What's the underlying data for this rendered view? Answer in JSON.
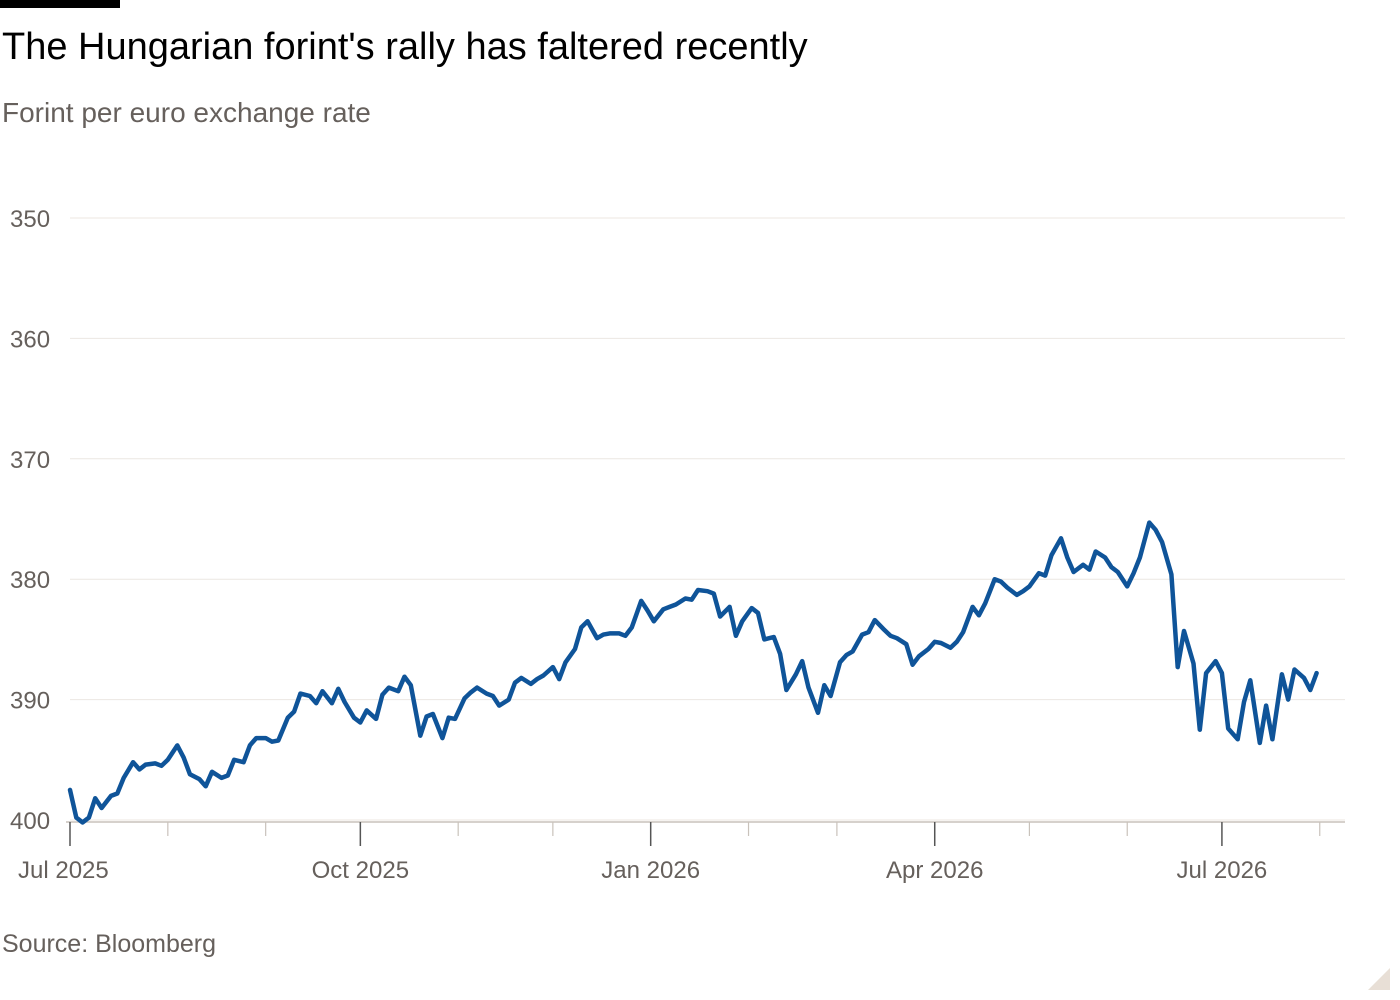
{
  "header": {
    "title": "The Hungarian forint's rally has faltered recently",
    "subtitle": "Forint per euro exchange rate"
  },
  "footer": {
    "source": "Source: Bloomberg"
  },
  "colors": {
    "line": "#0f5499",
    "grid": "#ece7e2",
    "axis": "#c9c2bb",
    "text": "#66605c"
  },
  "chart_data": {
    "type": "line",
    "title": "The Hungarian forint's rally has faltered recently",
    "subtitle": "Forint per euro exchange rate",
    "xlabel": "",
    "ylabel": "",
    "y_inverted": true,
    "ylim": [
      400,
      350
    ],
    "yticks": [
      350,
      360,
      370,
      380,
      390,
      400
    ],
    "xticks": [
      {
        "date": "2025-07-01",
        "label": "Jul 2025"
      },
      {
        "date": "2025-10-01",
        "label": "Oct 2025"
      },
      {
        "date": "2026-01-01",
        "label": "Jan 2026"
      },
      {
        "date": "2026-04-01",
        "label": "Apr 2026"
      },
      {
        "date": "2026-07-01",
        "label": "Jul 2026"
      }
    ],
    "minor_xticks": [
      "2025-08-01",
      "2025-09-01",
      "2025-11-01",
      "2025-12-01",
      "2026-02-01",
      "2026-03-01",
      "2026-05-01",
      "2026-06-01",
      "2026-08-01"
    ],
    "xlim": [
      "2025-07-01",
      "2026-08-09"
    ],
    "grid": true,
    "series": [
      {
        "points": [
          [
            "2025-07-01",
            397.5
          ],
          [
            "2025-07-03",
            399.8
          ],
          [
            "2025-07-05",
            400.2
          ],
          [
            "2025-07-07",
            399.8
          ],
          [
            "2025-07-09",
            398.2
          ],
          [
            "2025-07-11",
            399.0
          ],
          [
            "2025-07-14",
            398.0
          ],
          [
            "2025-07-16",
            397.8
          ],
          [
            "2025-07-18",
            396.5
          ],
          [
            "2025-07-21",
            395.2
          ],
          [
            "2025-07-23",
            395.8
          ],
          [
            "2025-07-25",
            395.4
          ],
          [
            "2025-07-28",
            395.3
          ],
          [
            "2025-07-30",
            395.5
          ],
          [
            "2025-08-01",
            395.0
          ],
          [
            "2025-08-04",
            393.8
          ],
          [
            "2025-08-06",
            394.8
          ],
          [
            "2025-08-08",
            396.2
          ],
          [
            "2025-08-11",
            396.6
          ],
          [
            "2025-08-13",
            397.2
          ],
          [
            "2025-08-15",
            396.0
          ],
          [
            "2025-08-18",
            396.5
          ],
          [
            "2025-08-20",
            396.3
          ],
          [
            "2025-08-22",
            395.0
          ],
          [
            "2025-08-25",
            395.2
          ],
          [
            "2025-08-27",
            393.8
          ],
          [
            "2025-08-29",
            393.2
          ],
          [
            "2025-09-01",
            393.2
          ],
          [
            "2025-09-03",
            393.5
          ],
          [
            "2025-09-05",
            393.4
          ],
          [
            "2025-09-08",
            391.5
          ],
          [
            "2025-09-10",
            391.0
          ],
          [
            "2025-09-12",
            389.5
          ],
          [
            "2025-09-15",
            389.7
          ],
          [
            "2025-09-17",
            390.3
          ],
          [
            "2025-09-19",
            389.3
          ],
          [
            "2025-09-22",
            390.3
          ],
          [
            "2025-09-24",
            389.1
          ],
          [
            "2025-09-26",
            390.2
          ],
          [
            "2025-09-29",
            391.5
          ],
          [
            "2025-10-01",
            391.9
          ],
          [
            "2025-10-03",
            390.9
          ],
          [
            "2025-10-06",
            391.6
          ],
          [
            "2025-10-08",
            389.6
          ],
          [
            "2025-10-10",
            389.0
          ],
          [
            "2025-10-13",
            389.3
          ],
          [
            "2025-10-15",
            388.1
          ],
          [
            "2025-10-17",
            388.8
          ],
          [
            "2025-10-20",
            393.0
          ],
          [
            "2025-10-22",
            391.4
          ],
          [
            "2025-10-24",
            391.2
          ],
          [
            "2025-10-27",
            393.2
          ],
          [
            "2025-10-29",
            391.5
          ],
          [
            "2025-10-31",
            391.6
          ],
          [
            "2025-11-03",
            389.9
          ],
          [
            "2025-11-05",
            389.4
          ],
          [
            "2025-11-07",
            389.0
          ],
          [
            "2025-11-10",
            389.5
          ],
          [
            "2025-11-12",
            389.7
          ],
          [
            "2025-11-14",
            390.5
          ],
          [
            "2025-11-17",
            390.0
          ],
          [
            "2025-11-19",
            388.6
          ],
          [
            "2025-11-21",
            388.2
          ],
          [
            "2025-11-24",
            388.7
          ],
          [
            "2025-11-26",
            388.3
          ],
          [
            "2025-11-28",
            388.0
          ],
          [
            "2025-12-01",
            387.3
          ],
          [
            "2025-12-03",
            388.3
          ],
          [
            "2025-12-05",
            386.9
          ],
          [
            "2025-12-08",
            385.8
          ],
          [
            "2025-12-10",
            384.0
          ],
          [
            "2025-12-12",
            383.5
          ],
          [
            "2025-12-15",
            384.9
          ],
          [
            "2025-12-17",
            384.6
          ],
          [
            "2025-12-19",
            384.5
          ],
          [
            "2025-12-22",
            384.5
          ],
          [
            "2025-12-24",
            384.7
          ],
          [
            "2025-12-26",
            384.0
          ],
          [
            "2025-12-29",
            381.8
          ],
          [
            "2025-12-31",
            382.6
          ],
          [
            "2026-01-02",
            383.5
          ],
          [
            "2026-01-05",
            382.5
          ],
          [
            "2026-01-07",
            382.3
          ],
          [
            "2026-01-09",
            382.1
          ],
          [
            "2026-01-12",
            381.6
          ],
          [
            "2026-01-14",
            381.7
          ],
          [
            "2026-01-16",
            380.9
          ],
          [
            "2026-01-19",
            381.0
          ],
          [
            "2026-01-21",
            381.2
          ],
          [
            "2026-01-23",
            383.1
          ],
          [
            "2026-01-26",
            382.3
          ],
          [
            "2026-01-28",
            384.7
          ],
          [
            "2026-01-30",
            383.5
          ],
          [
            "2026-02-02",
            382.4
          ],
          [
            "2026-02-04",
            382.8
          ],
          [
            "2026-02-06",
            385.0
          ],
          [
            "2026-02-09",
            384.8
          ],
          [
            "2026-02-11",
            386.2
          ],
          [
            "2026-02-13",
            389.2
          ],
          [
            "2026-02-16",
            387.9
          ],
          [
            "2026-02-18",
            386.8
          ],
          [
            "2026-02-20",
            389.0
          ],
          [
            "2026-02-23",
            391.1
          ],
          [
            "2026-02-25",
            388.8
          ],
          [
            "2026-02-27",
            389.7
          ],
          [
            "2026-03-02",
            386.9
          ],
          [
            "2026-03-04",
            386.3
          ],
          [
            "2026-03-06",
            386.0
          ],
          [
            "2026-03-09",
            384.6
          ],
          [
            "2026-03-11",
            384.4
          ],
          [
            "2026-03-13",
            383.4
          ],
          [
            "2026-03-16",
            384.2
          ],
          [
            "2026-03-18",
            384.7
          ],
          [
            "2026-03-20",
            384.9
          ],
          [
            "2026-03-23",
            385.4
          ],
          [
            "2026-03-25",
            387.1
          ],
          [
            "2026-03-27",
            386.4
          ],
          [
            "2026-03-30",
            385.8
          ],
          [
            "2026-04-01",
            385.2
          ],
          [
            "2026-04-03",
            385.3
          ],
          [
            "2026-04-06",
            385.7
          ],
          [
            "2026-04-08",
            385.2
          ],
          [
            "2026-04-10",
            384.4
          ],
          [
            "2026-04-13",
            382.3
          ],
          [
            "2026-04-15",
            383.0
          ],
          [
            "2026-04-17",
            382.0
          ],
          [
            "2026-04-20",
            380.0
          ],
          [
            "2026-04-22",
            380.2
          ],
          [
            "2026-04-24",
            380.7
          ],
          [
            "2026-04-27",
            381.3
          ],
          [
            "2026-04-29",
            381.0
          ],
          [
            "2026-05-01",
            380.6
          ],
          [
            "2026-05-04",
            379.5
          ],
          [
            "2026-05-06",
            379.7
          ],
          [
            "2026-05-08",
            378.0
          ],
          [
            "2026-05-11",
            376.6
          ],
          [
            "2026-05-13",
            378.2
          ],
          [
            "2026-05-15",
            379.4
          ],
          [
            "2026-05-18",
            378.8
          ],
          [
            "2026-05-20",
            379.2
          ],
          [
            "2026-05-22",
            377.7
          ],
          [
            "2026-05-25",
            378.2
          ],
          [
            "2026-05-27",
            379.0
          ],
          [
            "2026-05-29",
            379.4
          ],
          [
            "2026-06-01",
            380.6
          ],
          [
            "2026-06-03",
            379.5
          ],
          [
            "2026-06-05",
            378.2
          ],
          [
            "2026-06-08",
            375.3
          ],
          [
            "2026-06-10",
            375.9
          ],
          [
            "2026-06-12",
            376.9
          ],
          [
            "2026-06-15",
            379.6
          ],
          [
            "2026-06-17",
            387.3
          ],
          [
            "2026-06-19",
            384.3
          ],
          [
            "2026-06-22",
            387.0
          ],
          [
            "2026-06-24",
            392.5
          ],
          [
            "2026-06-26",
            387.8
          ],
          [
            "2026-06-29",
            386.8
          ],
          [
            "2026-07-01",
            387.8
          ],
          [
            "2026-07-03",
            392.4
          ],
          [
            "2026-07-06",
            393.3
          ],
          [
            "2026-07-08",
            390.2
          ],
          [
            "2026-07-10",
            388.4
          ],
          [
            "2026-07-13",
            393.6
          ],
          [
            "2026-07-15",
            390.5
          ],
          [
            "2026-07-17",
            393.3
          ],
          [
            "2026-07-20",
            387.9
          ],
          [
            "2026-07-22",
            390.0
          ],
          [
            "2026-07-24",
            387.5
          ],
          [
            "2026-07-27",
            388.2
          ],
          [
            "2026-07-29",
            389.2
          ],
          [
            "2026-07-31",
            387.8
          ]
        ]
      }
    ]
  }
}
